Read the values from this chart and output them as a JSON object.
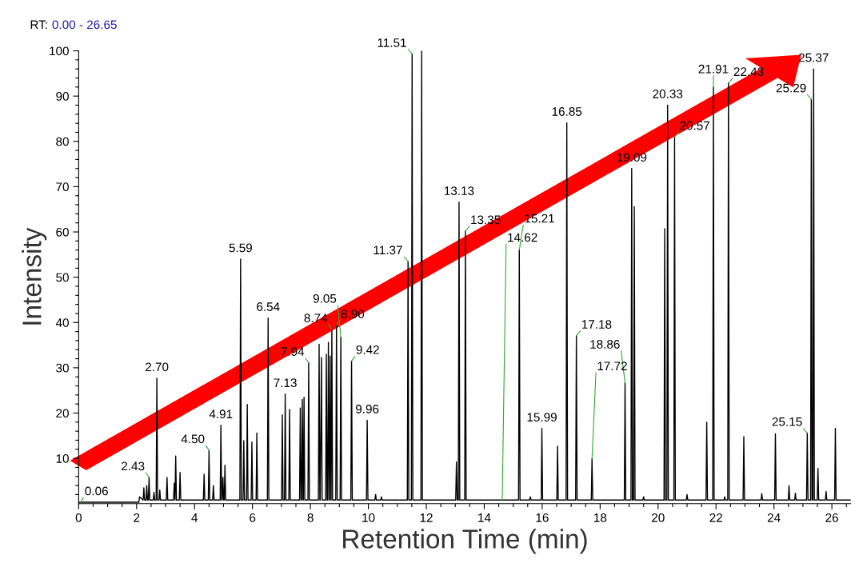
{
  "chart_data": {
    "type": "line",
    "title": "RT:",
    "subtitle": "0.00 - 26.65",
    "xlabel": "Retention Time (min)",
    "ylabel": "Intensity",
    "xlim": [
      0,
      26.65
    ],
    "ylim": [
      0,
      100
    ],
    "xticks": [
      0,
      {
        "value": 0.5,
        "label": null
      },
      {
        "value": 1,
        "label": null
      },
      {
        "value": 1.5,
        "label": null
      },
      2,
      {
        "value": 2.5,
        "label": null
      },
      {
        "value": 3,
        "label": null
      },
      {
        "value": 3.5,
        "label": null
      },
      4,
      {
        "value": 4.5,
        "label": null
      },
      {
        "value": 5,
        "label": null
      },
      {
        "value": 5.5,
        "label": null
      },
      6,
      {
        "value": 6.5,
        "label": null
      },
      {
        "value": 7,
        "label": null
      },
      {
        "value": 7.5,
        "label": null
      },
      8,
      {
        "value": 8.5,
        "label": null
      },
      {
        "value": 9,
        "label": null
      },
      {
        "value": 9.5,
        "label": null
      },
      10,
      {
        "value": 10.5,
        "label": null
      },
      {
        "value": 11,
        "label": null
      },
      {
        "value": 11.5,
        "label": null
      },
      12,
      {
        "value": 12.5,
        "label": null
      },
      {
        "value": 13,
        "label": null
      },
      {
        "value": 13.5,
        "label": null
      },
      14,
      {
        "value": 14.5,
        "label": null
      },
      {
        "value": 15,
        "label": null
      },
      {
        "value": 15.5,
        "label": null
      },
      16,
      {
        "value": 16.5,
        "label": null
      },
      {
        "value": 17,
        "label": null
      },
      {
        "value": 17.5,
        "label": null
      },
      18,
      {
        "value": 18.5,
        "label": null
      },
      {
        "value": 19,
        "label": null
      },
      {
        "value": 19.5,
        "label": null
      },
      20,
      {
        "value": 20.5,
        "label": null
      },
      {
        "value": 21,
        "label": null
      },
      {
        "value": 21.5,
        "label": null
      },
      22,
      {
        "value": 22.5,
        "label": null
      },
      {
        "value": 23,
        "label": null
      },
      {
        "value": 23.5,
        "label": null
      },
      24,
      {
        "value": 24.5,
        "label": null
      },
      {
        "value": 25,
        "label": null
      },
      {
        "value": 25.5,
        "label": null
      },
      26,
      {
        "value": 26.5,
        "label": null
      }
    ],
    "yticks": [
      {
        "value": 2,
        "label": null
      },
      {
        "value": 4,
        "label": null
      },
      {
        "value": 6,
        "label": null
      },
      {
        "value": 8,
        "label": null
      },
      10,
      {
        "value": 12,
        "label": null
      },
      {
        "value": 14,
        "label": null
      },
      {
        "value": 16,
        "label": null
      },
      {
        "value": 18,
        "label": null
      },
      20,
      {
        "value": 22,
        "label": null
      },
      {
        "value": 24,
        "label": null
      },
      {
        "value": 26,
        "label": null
      },
      {
        "value": 28,
        "label": null
      },
      30,
      {
        "value": 32,
        "label": null
      },
      {
        "value": 34,
        "label": null
      },
      {
        "value": 36,
        "label": null
      },
      {
        "value": 38,
        "label": null
      },
      40,
      {
        "value": 42,
        "label": null
      },
      {
        "value": 44,
        "label": null
      },
      {
        "value": 46,
        "label": null
      },
      {
        "value": 48,
        "label": null
      },
      50,
      {
        "value": 52,
        "label": null
      },
      {
        "value": 54,
        "label": null
      },
      {
        "value": 56,
        "label": null
      },
      {
        "value": 58,
        "label": null
      },
      60,
      {
        "value": 62,
        "label": null
      },
      {
        "value": 64,
        "label": null
      },
      {
        "value": 66,
        "label": null
      },
      {
        "value": 68,
        "label": null
      },
      70,
      {
        "value": 72,
        "label": null
      },
      {
        "value": 74,
        "label": null
      },
      {
        "value": 76,
        "label": null
      },
      {
        "value": 78,
        "label": null
      },
      80,
      {
        "value": 82,
        "label": null
      },
      {
        "value": 84,
        "label": null
      },
      {
        "value": 86,
        "label": null
      },
      {
        "value": 88,
        "label": null
      },
      90,
      {
        "value": 92,
        "label": null
      },
      {
        "value": 94,
        "label": null
      },
      {
        "value": 96,
        "label": null
      },
      {
        "value": 98,
        "label": null
      },
      100
    ],
    "grid": false,
    "marker": "none",
    "line_style": "solid",
    "series": [
      {
        "color": "#000000",
        "x": [
          0,
          2.08,
          2.1,
          2.225,
          2.25,
          2.275,
          2.325,
          2.35,
          2.375,
          2.405,
          2.43,
          2.455,
          2.575,
          2.6,
          2.625,
          2.675,
          2.7,
          2.725,
          2.775,
          2.8,
          2.825,
          3.025,
          3.05,
          3.075,
          3.275,
          3.3,
          3.325,
          3.35,
          3.375,
          3.475,
          3.5,
          3.525,
          4.305,
          4.33,
          4.355,
          4.475,
          4.5,
          4.525,
          4.625,
          4.65,
          4.675,
          4.885,
          4.91,
          4.935,
          4.955,
          4.98,
          5.005,
          5.025,
          5.05,
          5.075,
          5.565,
          5.59,
          5.615,
          5.675,
          5.7,
          5.725,
          5.795,
          5.82,
          5.845,
          5.955,
          5.98,
          6.005,
          6.125,
          6.15,
          6.175,
          6.515,
          6.54,
          6.565,
          7.005,
          7.03,
          7.055,
          7.105,
          7.13,
          7.155,
          7.255,
          7.28,
          7.305,
          7.625,
          7.65,
          7.675,
          7.695,
          7.72,
          7.745,
          7.755,
          7.78,
          7.805,
          7.915,
          7.94,
          7.965,
          8.275,
          8.3,
          8.325,
          8.34,
          8.38,
          8.405,
          8.525,
          8.55,
          8.575,
          8.595,
          8.62,
          8.645,
          8.655,
          8.68,
          8.705,
          8.715,
          8.74,
          8.765,
          8.875,
          8.9,
          8.925,
          9.025,
          9.05,
          9.075,
          9.395,
          9.42,
          9.445,
          9.935,
          9.96,
          9.985,
          10.225,
          10.25,
          10.275,
          10.425,
          10.45,
          10.475,
          11.345,
          11.37,
          11.395,
          11.485,
          11.51,
          11.535,
          11.815,
          11.84,
          11.865,
          13.015,
          13.04,
          13.07,
          13.105,
          13.13,
          13.155,
          13.325,
          13.35,
          13.375,
          15.185,
          15.21,
          15.235,
          15.565,
          15.59,
          15.615,
          15.965,
          15.99,
          16.015,
          16.505,
          16.53,
          16.555,
          16.825,
          16.85,
          16.875,
          17.155,
          17.18,
          17.205,
          17.695,
          17.72,
          17.745,
          18.835,
          18.86,
          18.885,
          19.065,
          19.09,
          19.115,
          19.155,
          19.18,
          19.205,
          19.475,
          19.5,
          19.525,
          20.205,
          20.23,
          20.255,
          20.305,
          20.33,
          20.355,
          20.545,
          20.57,
          20.595,
          20.975,
          21.0,
          21.025,
          21.655,
          21.68,
          21.705,
          21.885,
          21.91,
          21.935,
          22.275,
          22.3,
          22.325,
          22.405,
          22.43,
          22.455,
          22.935,
          22.96,
          22.985,
          23.555,
          23.58,
          23.605,
          24.025,
          24.05,
          24.075,
          24.495,
          24.52,
          24.545,
          24.715,
          24.74,
          24.765,
          25.125,
          25.15,
          25.175,
          25.265,
          25.29,
          25.315,
          25.345,
          25.37,
          25.395,
          25.495,
          25.52,
          25.545,
          25.775,
          25.8,
          25.825,
          26.095,
          26.12,
          26.145,
          26.65
        ],
        "values": [
          0.3,
          0.3,
          1.5,
          0.8,
          3.5,
          0.8,
          0.8,
          4.0,
          0.8,
          0.8,
          5.8,
          0.8,
          0.8,
          2.5,
          0.8,
          0.8,
          27.7,
          0.8,
          0.8,
          3.0,
          0.8,
          0.8,
          5.8,
          0.8,
          0.8,
          4.5,
          0.8,
          10.5,
          0.8,
          0.8,
          6.9,
          0.8,
          0.8,
          6.5,
          0.8,
          0.8,
          11.8,
          0.8,
          0.8,
          4.0,
          0.8,
          0.8,
          17.3,
          0.8,
          0.8,
          5.8,
          0.8,
          0.8,
          8.5,
          0.8,
          0.8,
          54.0,
          0.8,
          0.8,
          13.9,
          0.8,
          0.8,
          21.9,
          0.8,
          0.8,
          13.6,
          0.8,
          0.8,
          15.6,
          0.8,
          0.8,
          41.0,
          0.8,
          0.8,
          19.6,
          0.8,
          0.8,
          24.2,
          0.8,
          0.8,
          20.8,
          0.8,
          0.8,
          21.1,
          0.8,
          0.8,
          23.0,
          0.8,
          0.8,
          23.5,
          0.8,
          0.8,
          31.1,
          0.8,
          0.8,
          35.2,
          0.8,
          0.8,
          32.3,
          0.8,
          0.8,
          33.0,
          0.8,
          0.8,
          35.6,
          0.8,
          0.8,
          32.6,
          0.8,
          0.8,
          38.5,
          0.8,
          0.8,
          39.4,
          0.8,
          0.8,
          36.8,
          0.8,
          0.8,
          31.5,
          0.8,
          0.8,
          18.4,
          0.8,
          0.8,
          2.0,
          0.8,
          0.8,
          1.5,
          0.8,
          0.8,
          53.5,
          0.8,
          0.8,
          99.3,
          0.8,
          0.8,
          100,
          0.8,
          0.8,
          9.2,
          0.8,
          0.8,
          66.6,
          0.8,
          0.8,
          60.2,
          0.8,
          0.8,
          56.0,
          0.8,
          0.8,
          1.5,
          0.8,
          0.8,
          16.6,
          0.8,
          0.8,
          12.7,
          0.8,
          0.8,
          84.1,
          0.8,
          0.8,
          37.1,
          0.8,
          0.8,
          9.9,
          0.8,
          0.8,
          26.7,
          0.8,
          0.8,
          74.0,
          0.8,
          0.8,
          65.6,
          0.8,
          0.8,
          1.5,
          0.8,
          0.8,
          60.7,
          0.8,
          0.8,
          88.0,
          0.8,
          0.8,
          81.0,
          0.8,
          0.8,
          2.0,
          0.8,
          0.8,
          18.0,
          0.8,
          0.8,
          92.0,
          0.8,
          0.8,
          1.5,
          0.8,
          0.8,
          92.9,
          0.8,
          0.8,
          14.8,
          0.8,
          0.8,
          2.2,
          0.8,
          0.8,
          15.4,
          0.8,
          0.8,
          4.0,
          0.8,
          0.8,
          2.3,
          0.8,
          0.8,
          15.6,
          0.8,
          0.8,
          89.3,
          0.8,
          0.8,
          96.0,
          0.8,
          0.8,
          7.8,
          0.8,
          0.8,
          2.7,
          0.8,
          0.8,
          16.6,
          0.8,
          0.8
        ]
      }
    ],
    "annotations": [
      {
        "text": "0.06",
        "x": 0.06,
        "y": 0.3
      },
      {
        "text": "2.43",
        "x": 2.43,
        "y": 5.8
      },
      {
        "text": "2.70",
        "x": 2.7,
        "y": 27.7
      },
      {
        "text": "4.50",
        "x": 4.5,
        "y": 11.8
      },
      {
        "text": "4.91",
        "x": 4.91,
        "y": 17.3
      },
      {
        "text": "5.59",
        "x": 5.59,
        "y": 54.0
      },
      {
        "text": "6.54",
        "x": 6.54,
        "y": 41.0
      },
      {
        "text": "7.13",
        "x": 7.13,
        "y": 24.2
      },
      {
        "text": "7.94",
        "x": 7.94,
        "y": 31.1
      },
      {
        "text": "8.74",
        "x": 8.74,
        "y": 38.5
      },
      {
        "text": "8.90",
        "x": 8.9,
        "y": 39.4
      },
      {
        "text": "9.05",
        "x": 9.05,
        "y": 36.8
      },
      {
        "text": "9.42",
        "x": 9.42,
        "y": 31.5
      },
      {
        "text": "9.96",
        "x": 9.96,
        "y": 18.4
      },
      {
        "text": "11.37",
        "x": 11.37,
        "y": 53.5
      },
      {
        "text": "11.51",
        "x": 11.51,
        "y": 99.3
      },
      {
        "text": "13.13",
        "x": 13.13,
        "y": 66.6
      },
      {
        "text": "13.35",
        "x": 13.35,
        "y": 60.2
      },
      {
        "text": "14.62",
        "x": 14.62,
        "y": 0.8
      },
      {
        "text": "15.21",
        "x": 15.21,
        "y": 56.0
      },
      {
        "text": "15.99",
        "x": 15.99,
        "y": 16.6
      },
      {
        "text": "16.85",
        "x": 16.85,
        "y": 84.1
      },
      {
        "text": "17.18",
        "x": 17.18,
        "y": 37.1
      },
      {
        "text": "17.72",
        "x": 17.72,
        "y": 9.9
      },
      {
        "text": "18.86",
        "x": 18.86,
        "y": 26.7
      },
      {
        "text": "19.09",
        "x": 19.09,
        "y": 74.0
      },
      {
        "text": "20.33",
        "x": 20.33,
        "y": 88.0
      },
      {
        "text": "20.57",
        "x": 20.57,
        "y": 81.0
      },
      {
        "text": "21.91",
        "x": 21.91,
        "y": 92.0
      },
      {
        "text": "22.43",
        "x": 22.43,
        "y": 92.9
      },
      {
        "text": "25.15",
        "x": 25.15,
        "y": 15.6
      },
      {
        "text": "25.29",
        "x": 25.29,
        "y": 89.3
      },
      {
        "text": "25.37",
        "x": 25.37,
        "y": 96.0
      }
    ]
  }
}
